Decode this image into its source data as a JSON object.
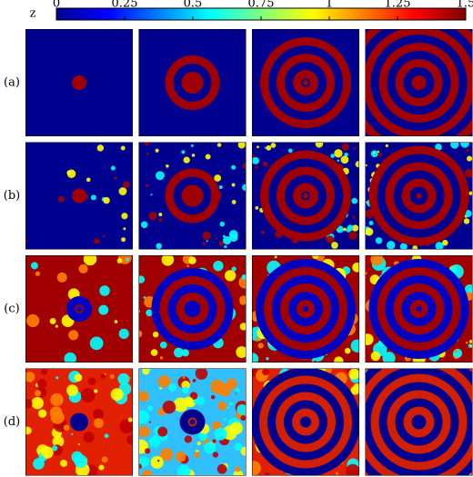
{
  "chart_data": {
    "type": "heatmap-grid",
    "colorbar": {
      "label": "z",
      "lim": [
        0,
        1.5
      ],
      "ticks": [
        0,
        0.25,
        0.5,
        0.75,
        1,
        1.25,
        1.5
      ]
    },
    "row_labels": [
      "(a)",
      "(b)",
      "(c)",
      "(d)"
    ]
  }
}
